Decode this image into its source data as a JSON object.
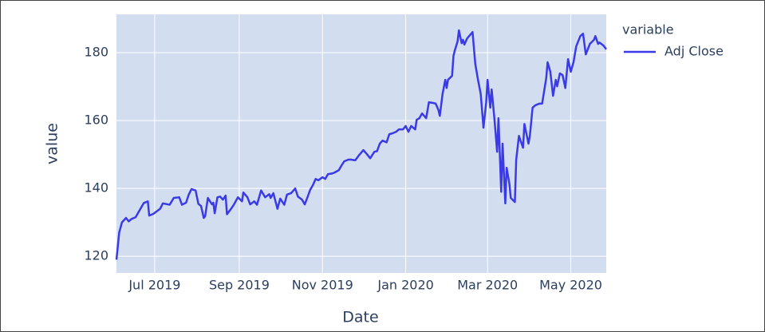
{
  "chart_data": {
    "type": "line",
    "x_label": "Date",
    "y_label": "value",
    "legend_title": "variable",
    "x": [
      "2019-06-03",
      "2019-06-05",
      "2019-06-07",
      "2019-06-10",
      "2019-06-12",
      "2019-06-14",
      "2019-06-17",
      "2019-06-20",
      "2019-06-23",
      "2019-06-26",
      "2019-06-27",
      "2019-06-30",
      "2019-07-05",
      "2019-07-07",
      "2019-07-12",
      "2019-07-15",
      "2019-07-19",
      "2019-07-21",
      "2019-07-24",
      "2019-07-26",
      "2019-07-28",
      "2019-07-31",
      "2019-08-02",
      "2019-08-04",
      "2019-08-06",
      "2019-08-07",
      "2019-08-09",
      "2019-08-12",
      "2019-08-13",
      "2019-08-14",
      "2019-08-16",
      "2019-08-18",
      "2019-08-20",
      "2019-08-22",
      "2019-08-23",
      "2019-08-26",
      "2019-08-28",
      "2019-08-31",
      "2019-09-03",
      "2019-09-04",
      "2019-09-07",
      "2019-09-09",
      "2019-09-12",
      "2019-09-14",
      "2019-09-17",
      "2019-09-20",
      "2019-09-23",
      "2019-09-24",
      "2019-09-26",
      "2019-09-29",
      "2019-10-01",
      "2019-10-04",
      "2019-10-06",
      "2019-10-09",
      "2019-10-12",
      "2019-10-14",
      "2019-10-17",
      "2019-10-19",
      "2019-10-21",
      "2019-10-23",
      "2019-10-25",
      "2019-10-27",
      "2019-10-29",
      "2019-11-01",
      "2019-11-03",
      "2019-11-05",
      "2019-11-08",
      "2019-11-10",
      "2019-11-13",
      "2019-11-15",
      "2019-11-17",
      "2019-11-20",
      "2019-11-22",
      "2019-11-25",
      "2019-11-28",
      "2019-12-01",
      "2019-12-04",
      "2019-12-06",
      "2019-12-09",
      "2019-12-11",
      "2019-12-13",
      "2019-12-15",
      "2019-12-18",
      "2019-12-20",
      "2019-12-22",
      "2019-12-25",
      "2019-12-27",
      "2019-12-30",
      "2020-01-01",
      "2020-01-03",
      "2020-01-05",
      "2020-01-08",
      "2020-01-09",
      "2020-01-11",
      "2020-01-13",
      "2020-01-16",
      "2020-01-18",
      "2020-01-21",
      "2020-01-23",
      "2020-01-25",
      "2020-01-26",
      "2020-01-28",
      "2020-01-30",
      "2020-01-31",
      "2020-02-01",
      "2020-02-04",
      "2020-02-05",
      "2020-02-06",
      "2020-02-08",
      "2020-02-09",
      "2020-02-11",
      "2020-02-12",
      "2020-02-13",
      "2020-02-15",
      "2020-02-18",
      "2020-02-19",
      "2020-02-21",
      "2020-02-23",
      "2020-02-25",
      "2020-02-27",
      "2020-02-29",
      "2020-03-01",
      "2020-03-03",
      "2020-03-04",
      "2020-03-06",
      "2020-03-08",
      "2020-03-09",
      "2020-03-11",
      "2020-03-12",
      "2020-03-14",
      "2020-03-15",
      "2020-03-17",
      "2020-03-18",
      "2020-03-21",
      "2020-03-22",
      "2020-03-24",
      "2020-03-27",
      "2020-03-28",
      "2020-03-31",
      "2020-04-01",
      "2020-04-03",
      "2020-04-05",
      "2020-04-08",
      "2020-04-10",
      "2020-04-13",
      "2020-04-14",
      "2020-04-16",
      "2020-04-18",
      "2020-04-20",
      "2020-04-21",
      "2020-04-23",
      "2020-04-25",
      "2020-04-27",
      "2020-04-29",
      "2020-05-01",
      "2020-05-03",
      "2020-05-05",
      "2020-05-08",
      "2020-05-10",
      "2020-05-12",
      "2020-05-15",
      "2020-05-18",
      "2020-05-19",
      "2020-05-21",
      "2020-05-22",
      "2020-05-25",
      "2020-05-27"
    ],
    "series": [
      {
        "name": "Adj Close",
        "color": "#3a3ae6",
        "values": [
          119,
          127,
          130,
          131.3,
          130.3,
          131,
          131.5,
          133.6,
          135.7,
          136.2,
          132,
          132.5,
          134,
          135.6,
          135.2,
          137.2,
          137.4,
          135.2,
          135.8,
          138.2,
          139.8,
          139.4,
          135.5,
          134.8,
          131.3,
          131.8,
          137.2,
          135.3,
          135.8,
          132.7,
          137.4,
          137.6,
          136.7,
          137.9,
          132.4,
          134,
          135.2,
          137.4,
          136.2,
          138.8,
          137.4,
          135.3,
          136.2,
          135.2,
          139.4,
          137.4,
          138.3,
          137.2,
          138.6,
          134,
          137,
          135.2,
          138.2,
          138.6,
          140,
          137.6,
          136.7,
          135.3,
          137.4,
          139.6,
          141,
          142.8,
          142.4,
          143.3,
          142.8,
          144.2,
          144.4,
          144.7,
          145.4,
          146.8,
          148,
          148.5,
          148.5,
          148.3,
          149.9,
          151.3,
          149.9,
          148.9,
          150.8,
          151,
          153.2,
          154.1,
          153.6,
          156,
          156.2,
          156.7,
          157.4,
          157.4,
          158.4,
          156.7,
          158.4,
          157.4,
          160.2,
          160.7,
          162.1,
          160.7,
          165.4,
          165.2,
          165,
          163.1,
          161.4,
          167.8,
          172,
          169.6,
          172,
          173.2,
          179,
          180.7,
          183.3,
          186.6,
          182.8,
          183.8,
          182.4,
          184.2,
          185.6,
          186.1,
          176.7,
          172,
          167.8,
          157.9,
          165.4,
          172,
          163.8,
          169.2,
          160.7,
          150.8,
          160.7,
          139,
          153.2,
          135.6,
          146.1,
          141.4,
          137.2,
          136,
          148.5,
          155.5,
          152,
          159,
          153.2,
          155.5,
          163.8,
          164.5,
          165,
          165,
          172.5,
          177.2,
          174.4,
          167.3,
          172,
          170.1,
          173.9,
          173.4,
          169.6,
          178.1,
          174.4,
          177.2,
          181.9,
          184.9,
          185.6,
          179.5,
          182.6,
          183.8,
          184.9,
          182.6,
          183,
          182.1,
          181
        ]
      }
    ],
    "xlim": [
      "2019-06-03",
      "2020-05-27"
    ],
    "xticks": [
      {
        "value": "2019-07-01",
        "label": "Jul 2019"
      },
      {
        "value": "2019-09-01",
        "label": "Sep 2019"
      },
      {
        "value": "2019-11-01",
        "label": "Nov 2019"
      },
      {
        "value": "2020-01-01",
        "label": "Jan 2020"
      },
      {
        "value": "2020-03-01",
        "label": "Mar 2020"
      },
      {
        "value": "2020-05-01",
        "label": "May 2020"
      }
    ],
    "ylim": [
      115.1,
      191.3
    ],
    "yticks": [
      120,
      140,
      160,
      180
    ],
    "grid": true,
    "plot_background": "#d3ddf0"
  }
}
